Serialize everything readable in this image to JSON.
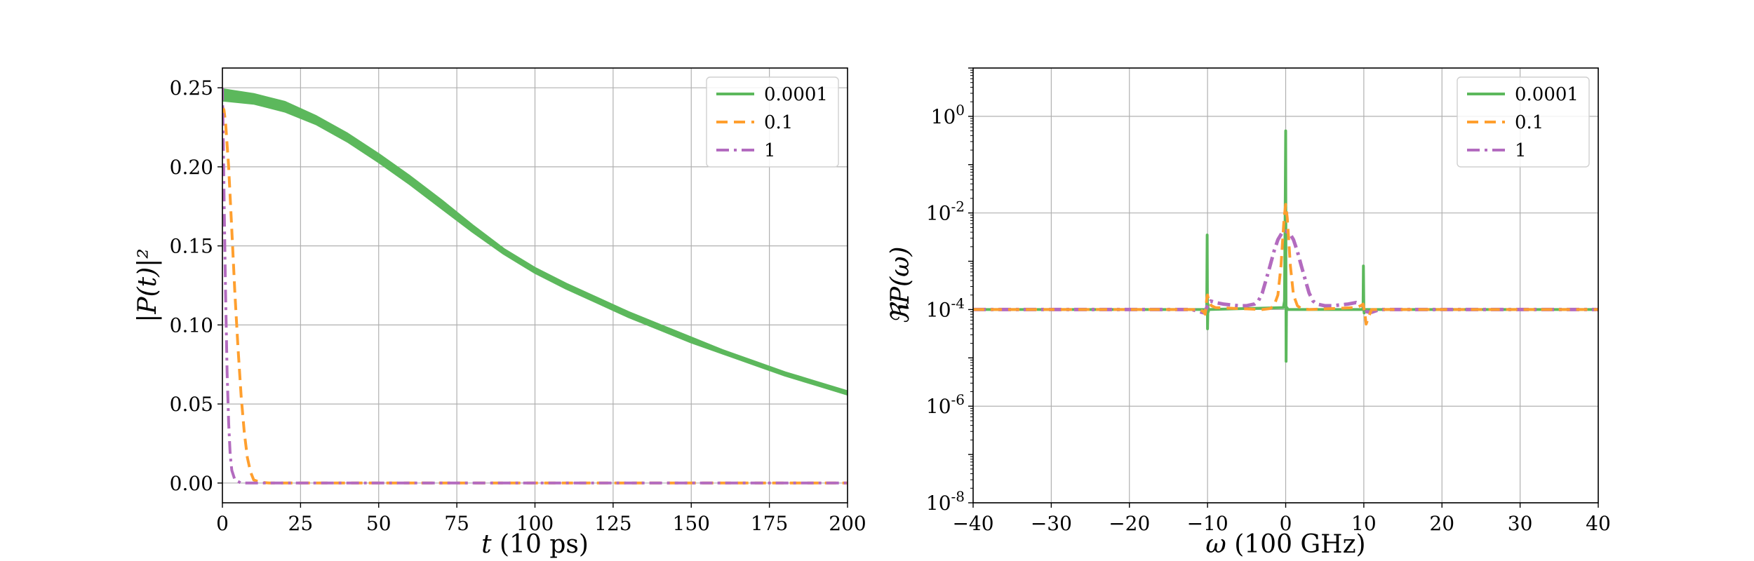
{
  "chart_data": [
    {
      "type": "line",
      "xlabel_var": "t",
      "xlabel_unit": "(10 ps)",
      "ylabel": "|P(t)|²",
      "xlim": [
        0,
        200
      ],
      "ylim": [
        -0.0125,
        0.2625
      ],
      "x_ticks": [
        0,
        25,
        50,
        75,
        100,
        125,
        150,
        175,
        200
      ],
      "x_tick_labels": [
        "0",
        "25",
        "50",
        "75",
        "100",
        "125",
        "150",
        "175",
        "200"
      ],
      "y_ticks": [
        0.0,
        0.05,
        0.1,
        0.15,
        0.2,
        0.25
      ],
      "y_tick_labels": [
        "0.00",
        "0.05",
        "0.10",
        "0.15",
        "0.20",
        "0.25"
      ],
      "grid": true,
      "legend_position": "top-right",
      "series": [
        {
          "name": "0.0001",
          "color": "#5cb85c",
          "style": "solid",
          "band": true,
          "x": [
            0,
            10,
            20,
            30,
            40,
            50,
            60,
            70,
            80,
            90,
            100,
            110,
            120,
            130,
            140,
            150,
            160,
            170,
            180,
            190,
            200
          ],
          "upper": [
            0.249,
            0.246,
            0.241,
            0.232,
            0.221,
            0.208,
            0.194,
            0.179,
            0.163,
            0.148,
            0.136,
            0.126,
            0.117,
            0.108,
            0.1,
            0.092,
            0.084,
            0.077,
            0.07,
            0.064,
            0.058
          ],
          "lower": [
            0.242,
            0.24,
            0.235,
            0.227,
            0.216,
            0.203,
            0.189,
            0.174,
            0.159,
            0.145,
            0.133,
            0.123,
            0.114,
            0.105,
            0.097,
            0.089,
            0.082,
            0.075,
            0.068,
            0.062,
            0.056
          ]
        },
        {
          "name": "0.1",
          "color": "#ff9f2e",
          "style": "dashed",
          "x": [
            0,
            0.5,
            1,
            2,
            3,
            4,
            5,
            6,
            7,
            8,
            9,
            10,
            12,
            15,
            200
          ],
          "y": [
            0.238,
            0.236,
            0.228,
            0.2,
            0.16,
            0.12,
            0.085,
            0.055,
            0.032,
            0.016,
            0.007,
            0.002,
            0.0005,
            0.0,
            0.0
          ]
        },
        {
          "name": "1",
          "color": "#b36bbf",
          "style": "dashdot",
          "x": [
            0,
            0.3,
            0.6,
            1,
            1.5,
            2,
            2.5,
            3,
            4,
            6,
            200
          ],
          "y": [
            0.25,
            0.215,
            0.17,
            0.12,
            0.07,
            0.038,
            0.018,
            0.008,
            0.002,
            0.0,
            0.0
          ]
        }
      ]
    },
    {
      "type": "line",
      "xlabel_var": "ω",
      "xlabel_unit": "(100 GHz)",
      "ylabel": "ℜP(ω)",
      "xlim": [
        -40,
        40
      ],
      "ylim_log10": [
        -8,
        1
      ],
      "yscale": "log",
      "x_ticks": [
        -40,
        -30,
        -20,
        -10,
        0,
        10,
        20,
        30,
        40
      ],
      "x_tick_labels": [
        "−40",
        "−30",
        "−20",
        "−10",
        "0",
        "10",
        "20",
        "30",
        "40"
      ],
      "y_ticks_log10": [
        -8,
        -6,
        -4,
        -2,
        0
      ],
      "y_tick_labels": [
        {
          "base": "10",
          "exp": "-8"
        },
        {
          "base": "10",
          "exp": "-6"
        },
        {
          "base": "10",
          "exp": "-4"
        },
        {
          "base": "10",
          "exp": "-2"
        },
        {
          "base": "10",
          "exp": "0"
        }
      ],
      "grid": true,
      "legend_position": "top-right",
      "series": [
        {
          "name": "0.0001",
          "color": "#5cb85c",
          "style": "solid",
          "x": [
            -40,
            -10.15,
            -10.1,
            -10.05,
            -10.0,
            -9.95,
            -9.9,
            -9.85,
            -0.3,
            -0.15,
            -0.1,
            -0.05,
            0.0,
            0.05,
            0.1,
            0.15,
            0.3,
            9.85,
            9.9,
            9.95,
            10.0,
            10.05,
            10.1,
            10.15,
            40
          ],
          "y": [
            0.0001,
            0.0001,
            0.00012,
            0.0035,
            4e-05,
            0.00013,
            9e-05,
            0.0001,
            0.00011,
            0.00015,
            0.002,
            0.02,
            0.5,
            8.5e-06,
            0.0001,
            0.00011,
            0.0001,
            0.0001,
            0.00011,
            0.0008,
            0.0001,
            8.5e-05,
            0.0001,
            0.0001,
            0.0001
          ]
        },
        {
          "name": "0.1",
          "color": "#ff9f2e",
          "style": "dashed",
          "x": [
            -40,
            -11,
            -10.5,
            -10.3,
            -10.1,
            -10,
            -9.8,
            -9.5,
            -9,
            -3,
            -2,
            -1.5,
            -1,
            -0.6,
            -0.4,
            -0.2,
            0,
            0.2,
            0.4,
            0.6,
            1,
            1.5,
            2,
            3,
            9,
            9.6,
            9.9,
            10.1,
            10.3,
            10.6,
            11,
            40
          ],
          "y": [
            0.0001,
            0.0001,
            9e-05,
            8e-05,
            0.00017,
            0.0002,
            0.00014,
            0.00012,
            0.00011,
            0.0001,
            0.000105,
            0.00012,
            0.0002,
            0.0008,
            0.0025,
            0.008,
            0.015,
            0.008,
            0.0025,
            0.0008,
            0.0002,
            0.00012,
            0.000105,
            0.0001,
            0.00011,
            0.00012,
            0.00013,
            9e-05,
            5e-05,
            7e-05,
            0.0001,
            0.0001
          ]
        },
        {
          "name": "1",
          "color": "#b36bbf",
          "style": "dashdot",
          "x": [
            -40,
            -12,
            -11,
            -10.4,
            -10,
            -9.6,
            -9,
            -8,
            -7,
            -6,
            -5,
            -4,
            -3.5,
            -3,
            -2.5,
            -2,
            -1.5,
            -1,
            -0.5,
            0,
            0.5,
            1,
            1.5,
            2,
            2.5,
            3,
            3.5,
            4,
            5,
            6,
            7,
            8,
            9,
            9.6,
            10,
            10.4,
            11,
            12,
            40
          ],
          "y": [
            0.0001,
            0.0001,
            9e-05,
            8.5e-05,
            0.00012,
            0.00015,
            0.00014,
            0.00013,
            0.000125,
            0.00012,
            0.00012,
            0.00013,
            0.00015,
            0.00022,
            0.00042,
            0.0008,
            0.0016,
            0.0028,
            0.0038,
            0.0042,
            0.0038,
            0.0028,
            0.0016,
            0.0008,
            0.00042,
            0.00022,
            0.00015,
            0.00013,
            0.00012,
            0.00012,
            0.000125,
            0.00013,
            0.00014,
            0.00013,
            0.00011,
            9e-05,
            8.8e-05,
            0.0001,
            0.0001
          ]
        }
      ]
    }
  ]
}
